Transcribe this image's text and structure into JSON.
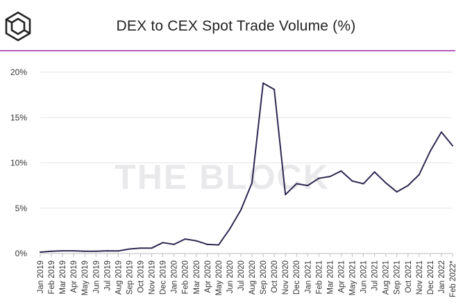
{
  "brand": {
    "logo_icon": "the-block-cube-icon",
    "watermark": "THE BLOCK"
  },
  "colors": {
    "line": "#2b2750",
    "accent_rule": "#b65ab8",
    "grid": "#e6e6e6"
  },
  "chart_data": {
    "type": "line",
    "title": "DEX to CEX Spot Trade Volume (%)",
    "xlabel": "",
    "ylabel": "",
    "ylim": [
      0,
      20
    ],
    "yticks": [
      0,
      5,
      10,
      15,
      20
    ],
    "ytick_labels": [
      "0%",
      "5%",
      "10%",
      "15%",
      "20%"
    ],
    "grid": true,
    "categories": [
      "Jan 2019",
      "Feb 2019",
      "Mar 2019",
      "Apr 2019",
      "May 2019",
      "Jun 2019",
      "Jul 2019",
      "Aug 2019",
      "Sep 2019",
      "Oct 2019",
      "Nov 2019",
      "Dec 2019",
      "Jan 2020",
      "Feb 2020",
      "Mar 2020",
      "Apr 2020",
      "May 2020",
      "Jun 2020",
      "Jul 2020",
      "Aug 2020",
      "Sep 2020",
      "Oct 2020",
      "Nov 2020",
      "Dec 2020",
      "Jan 2021",
      "Feb 2021",
      "Mar 2021",
      "Apr 2021",
      "May 2021",
      "Jun 2021",
      "Jul 2021",
      "Aug 2021",
      "Sep 2021",
      "Oct 2021",
      "Nov 2021",
      "Dec 2021",
      "Jan 2022",
      "Feb 2022*"
    ],
    "series": [
      {
        "name": "DEX to CEX Spot Trade Volume (%)",
        "values": [
          0.15,
          0.25,
          0.3,
          0.3,
          0.25,
          0.25,
          0.3,
          0.28,
          0.5,
          0.6,
          0.6,
          1.2,
          1.0,
          1.6,
          1.4,
          1.0,
          0.95,
          2.7,
          4.8,
          7.8,
          18.8,
          18.1,
          6.5,
          7.7,
          7.5,
          8.3,
          8.5,
          9.1,
          8.0,
          7.7,
          9.0,
          7.8,
          6.8,
          7.5,
          8.7,
          11.3,
          13.4,
          11.9
        ]
      }
    ]
  }
}
